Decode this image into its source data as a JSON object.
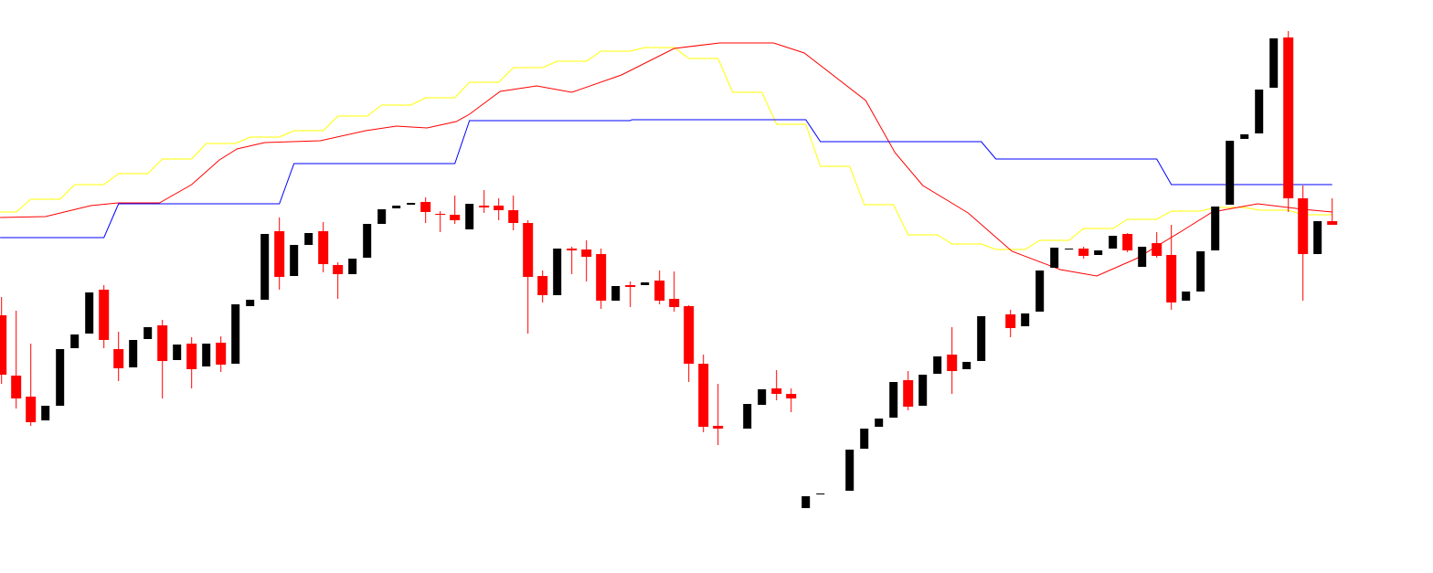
{
  "chart_data": {
    "type": "candlestick",
    "title": "",
    "xlabel": "",
    "ylabel": "",
    "axes_visible": false,
    "grid": false,
    "ylim": [
      0,
      120
    ],
    "x_range": [
      1,
      92
    ],
    "colors": {
      "up_candle": "#000000",
      "down_candle": "#ff0000",
      "line_yellow": "#ffff00",
      "line_red": "#ff0000",
      "line_blue": "#0000ff",
      "background": "#ffffff"
    },
    "candles_ohlc": [
      [
        51.0,
        55.0,
        36.0,
        38.0
      ],
      [
        37.8,
        52.0,
        30.6,
        32.8
      ],
      [
        33.2,
        44.8,
        26.8,
        27.6
      ],
      [
        28.0,
        31.2,
        28.0,
        31.2
      ],
      [
        31.2,
        43.6,
        31.2,
        43.6
      ],
      [
        43.8,
        46.8,
        43.8,
        46.8
      ],
      [
        47.0,
        56.0,
        47.0,
        56.0
      ],
      [
        56.6,
        57.6,
        43.8,
        45.6
      ],
      [
        43.6,
        47.4,
        36.6,
        39.4
      ],
      [
        39.6,
        45.6,
        39.6,
        45.6
      ],
      [
        45.8,
        48.4,
        45.8,
        48.4
      ],
      [
        48.8,
        50.0,
        32.8,
        41.0
      ],
      [
        41.2,
        44.6,
        41.2,
        44.6
      ],
      [
        44.8,
        46.2,
        35.0,
        39.2
      ],
      [
        39.8,
        44.8,
        39.8,
        44.8
      ],
      [
        45.0,
        46.4,
        38.6,
        40.2
      ],
      [
        40.4,
        53.4,
        40.4,
        53.4
      ],
      [
        53.0,
        54.4,
        53.0,
        54.4
      ],
      [
        54.4,
        68.8,
        54.4,
        68.8
      ],
      [
        69.4,
        72.4,
        56.6,
        59.4
      ],
      [
        59.6,
        66.4,
        59.6,
        66.4
      ],
      [
        66.4,
        69.0,
        66.4,
        69.0
      ],
      [
        69.4,
        71.4,
        60.4,
        62.2
      ],
      [
        62.0,
        62.6,
        54.6,
        60.0
      ],
      [
        60.0,
        63.4,
        60.0,
        63.4
      ],
      [
        63.6,
        71.0,
        63.6,
        71.0
      ],
      [
        71.0,
        74.2,
        71.0,
        74.2
      ],
      [
        74.4,
        75.0,
        74.4,
        75.0
      ],
      [
        75.2,
        75.6,
        75.2,
        75.6
      ],
      [
        75.8,
        76.8,
        71.2,
        73.6
      ],
      [
        73.2,
        73.8,
        69.2,
        73.0
      ],
      [
        73.0,
        77.2,
        71.0,
        71.8
      ],
      [
        69.8,
        75.4,
        69.8,
        75.4
      ],
      [
        75.0,
        78.4,
        73.4,
        74.6
      ],
      [
        75.0,
        76.6,
        71.8,
        74.0
      ],
      [
        74.0,
        77.2,
        69.6,
        71.2
      ],
      [
        71.2,
        71.8,
        47.0,
        59.4
      ],
      [
        59.6,
        60.8,
        53.8,
        55.4
      ],
      [
        55.4,
        65.6,
        55.4,
        65.6
      ],
      [
        65.6,
        66.0,
        60.0,
        65.2
      ],
      [
        65.4,
        67.4,
        58.4,
        63.8
      ],
      [
        64.4,
        65.6,
        52.4,
        54.2
      ],
      [
        54.2,
        57.4,
        54.2,
        57.4
      ],
      [
        57.6,
        58.4,
        52.8,
        57.2
      ],
      [
        57.6,
        58.2,
        57.6,
        58.2
      ],
      [
        58.6,
        60.8,
        53.4,
        54.2
      ],
      [
        54.6,
        60.6,
        51.8,
        52.8
      ],
      [
        53.0,
        53.2,
        36.4,
        40.4
      ],
      [
        40.4,
        42.4,
        25.4,
        26.6
      ],
      [
        26.8,
        36.0,
        22.6,
        26.2
      ],
      null,
      [
        26.2,
        31.6,
        26.2,
        31.6
      ],
      [
        31.4,
        34.8,
        31.4,
        34.8
      ],
      [
        35.0,
        39.0,
        32.4,
        33.8
      ],
      [
        33.8,
        35.0,
        29.8,
        32.8
      ],
      [
        8.8,
        11.4,
        8.8,
        11.4
      ],
      [
        11.9,
        12.0,
        11.9,
        12.0
      ],
      null,
      [
        12.6,
        21.6,
        12.6,
        21.6
      ],
      [
        21.8,
        26.2,
        21.8,
        26.2
      ],
      [
        26.6,
        28.4,
        26.6,
        28.4
      ],
      [
        28.6,
        36.4,
        28.6,
        36.4
      ],
      [
        36.8,
        38.8,
        30.2,
        31.0
      ],
      [
        31.2,
        38.0,
        31.2,
        38.0
      ],
      [
        38.2,
        42.0,
        38.2,
        42.0
      ],
      [
        42.4,
        48.4,
        33.8,
        38.8
      ],
      [
        39.2,
        40.8,
        39.2,
        40.8
      ],
      [
        41.0,
        50.8,
        41.0,
        50.8
      ],
      null,
      [
        51.2,
        52.2,
        46.2,
        48.2
      ],
      [
        48.6,
        51.4,
        48.6,
        51.4
      ],
      [
        51.8,
        60.8,
        51.8,
        60.8
      ],
      [
        61.4,
        65.8,
        61.4,
        65.8
      ],
      [
        65.5,
        65.6,
        65.5,
        65.6
      ],
      [
        65.6,
        66.0,
        63.4,
        64.0
      ],
      [
        64.2,
        65.2,
        64.2,
        65.2
      ],
      [
        65.6,
        68.4,
        65.6,
        68.4
      ],
      [
        68.8,
        69.0,
        64.8,
        65.2
      ],
      [
        61.6,
        66.0,
        61.6,
        66.0
      ],
      [
        66.8,
        69.2,
        63.6,
        64.0
      ],
      [
        64.2,
        70.8,
        52.2,
        53.8
      ],
      [
        54.2,
        56.2,
        54.2,
        56.2
      ],
      [
        56.2,
        65.0,
        56.2,
        65.0
      ],
      [
        65.2,
        74.8,
        65.2,
        74.8
      ],
      [
        75.2,
        89.2,
        75.2,
        89.2
      ],
      [
        89.6,
        90.6,
        89.6,
        90.6
      ],
      [
        90.8,
        100.4,
        90.8,
        100.4
      ],
      [
        100.8,
        111.6,
        100.8,
        111.6
      ],
      [
        111.8,
        113.2,
        73.6,
        76.6
      ],
      [
        76.6,
        79.4,
        54.2,
        64.4
      ],
      [
        64.4,
        71.6,
        64.4,
        71.6
      ],
      [
        71.6,
        76.6,
        71.4,
        70.8
      ]
    ],
    "lines": [
      {
        "color": "#ffff00",
        "style": "step",
        "points": [
          [
            0.9,
            73.6
          ],
          [
            2,
            73.6
          ],
          [
            3,
            76.4
          ],
          [
            5,
            76.4
          ],
          [
            6,
            79.6
          ],
          [
            8,
            79.6
          ],
          [
            9,
            82
          ],
          [
            11,
            82
          ],
          [
            12,
            85.2
          ],
          [
            14,
            85.2
          ],
          [
            15,
            88.6
          ],
          [
            17,
            88.6
          ],
          [
            18,
            90
          ],
          [
            20,
            90
          ],
          [
            21,
            91.4
          ],
          [
            23,
            91.4
          ],
          [
            24,
            94.6
          ],
          [
            26,
            94.6
          ],
          [
            27,
            97
          ],
          [
            29,
            97
          ],
          [
            30,
            98.6
          ],
          [
            32,
            98.6
          ],
          [
            33,
            102
          ],
          [
            35,
            102
          ],
          [
            36,
            105.2
          ],
          [
            38,
            105.2
          ],
          [
            39,
            106.6
          ],
          [
            41,
            106.6
          ],
          [
            42,
            108.8
          ],
          [
            44,
            108.8
          ],
          [
            45,
            109.6
          ],
          [
            47,
            109.6
          ],
          [
            48,
            107.2
          ],
          [
            50,
            107.2
          ],
          [
            51,
            99.8
          ],
          [
            53,
            99.8
          ],
          [
            54,
            92.8
          ],
          [
            56,
            92.8
          ],
          [
            57,
            83.6
          ],
          [
            59,
            83.6
          ],
          [
            60,
            75.2
          ],
          [
            62,
            75.2
          ],
          [
            63,
            68.6
          ],
          [
            65,
            68.6
          ],
          [
            66,
            66.6
          ],
          [
            68,
            66.6
          ],
          [
            69,
            65.4
          ],
          [
            71,
            65.4
          ],
          [
            72,
            67.4
          ],
          [
            74,
            67.4
          ],
          [
            75,
            70
          ],
          [
            77,
            70
          ],
          [
            78,
            72
          ],
          [
            80,
            72
          ],
          [
            81,
            73.8
          ],
          [
            83,
            73.8
          ],
          [
            84,
            74.6
          ],
          [
            86,
            74.6
          ],
          [
            87,
            74
          ],
          [
            89,
            74
          ],
          [
            90,
            73
          ],
          [
            92,
            73
          ]
        ]
      },
      {
        "color": "#ff0000",
        "style": "smooth",
        "points": [
          [
            0.9,
            72.4
          ],
          [
            4,
            72.6
          ],
          [
            7.1,
            75
          ],
          [
            9,
            75.6
          ],
          [
            11.8,
            75.6
          ],
          [
            14,
            79.6
          ],
          [
            15.9,
            85
          ],
          [
            17.1,
            87.4
          ],
          [
            19,
            88.8
          ],
          [
            22.8,
            89.2
          ],
          [
            25.9,
            91.4
          ],
          [
            28,
            92.4
          ],
          [
            30.1,
            92
          ],
          [
            32.1,
            93.4
          ],
          [
            33,
            95
          ],
          [
            35.1,
            100
          ],
          [
            37.6,
            101.2
          ],
          [
            40,
            99.8
          ],
          [
            43.4,
            103.6
          ],
          [
            47,
            109.4
          ],
          [
            50.1,
            110.6
          ],
          [
            53.8,
            110.6
          ],
          [
            55.9,
            108.4
          ],
          [
            60.1,
            98
          ],
          [
            62.1,
            86.6
          ],
          [
            64,
            79.4
          ],
          [
            67.1,
            73.4
          ],
          [
            70.1,
            65
          ],
          [
            73.4,
            61
          ],
          [
            75.9,
            59.6
          ],
          [
            78.6,
            63.4
          ],
          [
            81.7,
            69.4
          ],
          [
            83.8,
            73.6
          ],
          [
            86.9,
            75.4
          ],
          [
            90,
            74.2
          ],
          [
            92,
            73.6
          ]
        ]
      },
      {
        "color": "#0000ff",
        "style": "step",
        "points": [
          [
            0.9,
            68
          ],
          [
            8,
            68
          ],
          [
            9,
            75.4
          ],
          [
            20,
            75.4
          ],
          [
            21,
            84.2
          ],
          [
            32,
            84.2
          ],
          [
            33,
            93.6
          ],
          [
            44,
            93.6
          ],
          [
            44.1,
            93.8
          ],
          [
            56,
            93.8
          ],
          [
            57,
            89
          ],
          [
            68,
            89
          ],
          [
            69,
            85.2
          ],
          [
            80,
            85.2
          ],
          [
            81,
            79.6
          ],
          [
            92,
            79.6
          ]
        ]
      }
    ]
  }
}
